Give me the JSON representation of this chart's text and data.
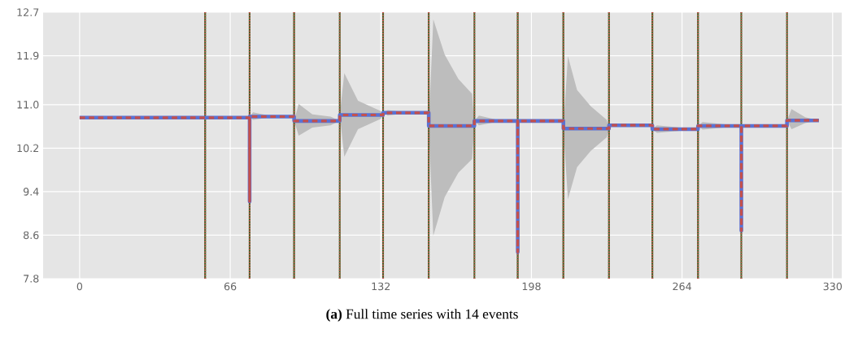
{
  "chart_data": {
    "type": "line",
    "xlim": [
      -16,
      334
    ],
    "ylim": [
      7.8,
      12.7
    ],
    "xticks": [
      0,
      66,
      132,
      198,
      264,
      330
    ],
    "yticks": [
      7.8,
      8.6,
      9.4,
      10.2,
      {
        "value": 11,
        "label": "11.0"
      },
      11.9,
      12.7
    ],
    "grid": true,
    "marker": "none",
    "series": [
      {
        "color": "#5a72d4",
        "line_style": "solid",
        "x": [
          0,
          74.5,
          74.5,
          74.5,
          76,
          84,
          94,
          94,
          96,
          102,
          110,
          114,
          114,
          116,
          122,
          132,
          133,
          133,
          135,
          145,
          153,
          153,
          155,
          160,
          166,
          172,
          173,
          173,
          175,
          185,
          192,
          192,
          192,
          212,
          212,
          214,
          218,
          224,
          231,
          232,
          232,
          251,
          251,
          253,
          271,
          271,
          273,
          290,
          290,
          290,
          310,
          310,
          312,
          318,
          324
        ],
        "values": [
          10.76,
          10.76,
          9.22,
          10.78,
          10.78,
          10.78,
          10.78,
          10.7,
          10.7,
          10.7,
          10.7,
          10.7,
          10.81,
          10.81,
          10.81,
          10.81,
          10.81,
          10.85,
          10.85,
          10.85,
          10.85,
          10.61,
          10.61,
          10.61,
          10.61,
          10.61,
          10.61,
          10.7,
          10.7,
          10.7,
          10.7,
          8.29,
          10.7,
          10.7,
          10.56,
          10.56,
          10.56,
          10.56,
          10.56,
          10.56,
          10.62,
          10.62,
          10.55,
          10.55,
          10.55,
          10.61,
          10.61,
          10.61,
          8.68,
          10.61,
          10.61,
          10.71,
          10.71,
          10.71,
          10.71
        ],
        "lower": [
          10.76,
          10.76,
          9.22,
          10.78,
          10.72,
          10.77,
          10.78,
          10.7,
          10.43,
          10.58,
          10.62,
          10.7,
          10.81,
          10.04,
          10.55,
          10.74,
          10.81,
          10.85,
          10.8,
          10.85,
          10.85,
          10.61,
          8.59,
          9.3,
          9.75,
          10.0,
          10.61,
          10.7,
          10.62,
          10.7,
          10.7,
          8.29,
          10.7,
          10.7,
          10.56,
          9.26,
          9.85,
          10.15,
          10.4,
          10.56,
          10.62,
          10.62,
          10.55,
          10.48,
          10.55,
          10.61,
          10.54,
          10.61,
          8.68,
          10.61,
          10.61,
          10.71,
          10.55,
          10.66,
          10.71
        ],
        "upper": [
          10.76,
          10.76,
          9.22,
          10.78,
          10.86,
          10.79,
          10.78,
          10.7,
          11.01,
          10.82,
          10.78,
          10.7,
          10.81,
          11.58,
          11.07,
          10.88,
          10.81,
          10.85,
          10.9,
          10.85,
          10.85,
          10.61,
          12.57,
          11.92,
          11.47,
          11.2,
          10.61,
          10.7,
          10.8,
          10.7,
          10.7,
          8.29,
          10.7,
          10.7,
          10.56,
          11.89,
          11.27,
          10.97,
          10.72,
          10.56,
          10.62,
          10.62,
          10.55,
          10.62,
          10.55,
          10.61,
          10.68,
          10.61,
          8.68,
          10.61,
          10.61,
          10.71,
          10.92,
          10.77,
          10.71
        ]
      },
      {
        "color": "#c4504c",
        "line_style": "dashed",
        "x": [
          0,
          74.5,
          74.5,
          74.5,
          94,
          94,
          114,
          114,
          133,
          133,
          153,
          153,
          173,
          173,
          192,
          192,
          192,
          212,
          212,
          232,
          232,
          251,
          251,
          271,
          271,
          290,
          290,
          290,
          310,
          310,
          324
        ],
        "values": [
          10.76,
          10.76,
          9.22,
          10.78,
          10.78,
          10.7,
          10.7,
          10.81,
          10.81,
          10.85,
          10.85,
          10.61,
          10.61,
          10.7,
          10.7,
          8.29,
          10.7,
          10.7,
          10.56,
          10.56,
          10.62,
          10.62,
          10.55,
          10.55,
          10.61,
          10.61,
          8.68,
          10.61,
          10.61,
          10.71,
          10.71
        ]
      }
    ],
    "ref_lines": [
      {
        "axis": "x",
        "value": 55,
        "color": "#2f6a22",
        "line_style": "solid"
      },
      {
        "axis": "x",
        "value": 74.5,
        "color": "#2f6a22",
        "line_style": "solid"
      },
      {
        "axis": "x",
        "value": 94,
        "color": "#2f6a22",
        "line_style": "solid"
      },
      {
        "axis": "x",
        "value": 114,
        "color": "#2f6a22",
        "line_style": "solid"
      },
      {
        "axis": "x",
        "value": 133,
        "color": "#2f6a22",
        "line_style": "solid"
      },
      {
        "axis": "x",
        "value": 153,
        "color": "#2f6a22",
        "line_style": "solid"
      },
      {
        "axis": "x",
        "value": 173,
        "color": "#2f6a22",
        "line_style": "solid"
      },
      {
        "axis": "x",
        "value": 192,
        "color": "#2f6a22",
        "line_style": "solid"
      },
      {
        "axis": "x",
        "value": 212,
        "color": "#2f6a22",
        "line_style": "solid"
      },
      {
        "axis": "x",
        "value": 232,
        "color": "#2f6a22",
        "line_style": "solid"
      },
      {
        "axis": "x",
        "value": 251,
        "color": "#2f6a22",
        "line_style": "solid"
      },
      {
        "axis": "x",
        "value": 271,
        "color": "#2f6a22",
        "line_style": "solid"
      },
      {
        "axis": "x",
        "value": 290,
        "color": "#2f6a22",
        "line_style": "solid"
      },
      {
        "axis": "x",
        "value": 310,
        "color": "#2f6a22",
        "line_style": "solid"
      },
      {
        "axis": "x",
        "value": 55,
        "color": "#c4504c",
        "line_style": "dotted"
      },
      {
        "axis": "x",
        "value": 74.5,
        "color": "#c4504c",
        "line_style": "dotted"
      },
      {
        "axis": "x",
        "value": 94,
        "color": "#c4504c",
        "line_style": "dotted"
      },
      {
        "axis": "x",
        "value": 114,
        "color": "#c4504c",
        "line_style": "dotted"
      },
      {
        "axis": "x",
        "value": 133,
        "color": "#c4504c",
        "line_style": "dotted"
      },
      {
        "axis": "x",
        "value": 153,
        "color": "#c4504c",
        "line_style": "dotted"
      },
      {
        "axis": "x",
        "value": 173,
        "color": "#c4504c",
        "line_style": "dotted"
      },
      {
        "axis": "x",
        "value": 192,
        "color": "#c4504c",
        "line_style": "dotted"
      },
      {
        "axis": "x",
        "value": 212,
        "color": "#c4504c",
        "line_style": "dotted"
      },
      {
        "axis": "x",
        "value": 232,
        "color": "#c4504c",
        "line_style": "dotted"
      },
      {
        "axis": "x",
        "value": 251,
        "color": "#c4504c",
        "line_style": "dotted"
      },
      {
        "axis": "x",
        "value": 271,
        "color": "#c4504c",
        "line_style": "dotted"
      },
      {
        "axis": "x",
        "value": 290,
        "color": "#c4504c",
        "line_style": "dotted"
      },
      {
        "axis": "x",
        "value": 310,
        "color": "#c4504c",
        "line_style": "dotted"
      }
    ],
    "annotations": [
      "**(a)** Full time series with 14 events"
    ]
  }
}
